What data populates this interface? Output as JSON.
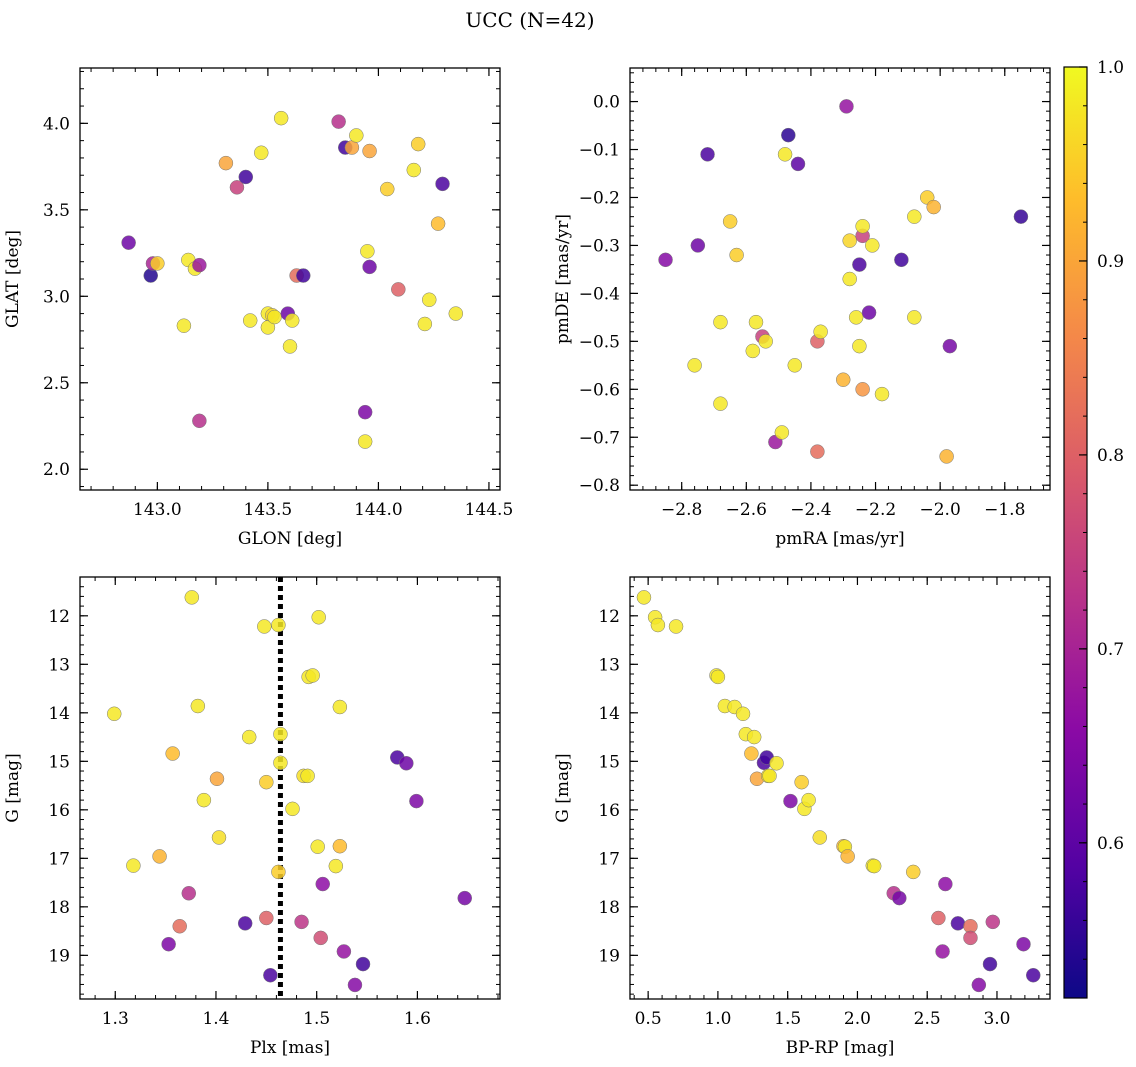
{
  "figure": {
    "title": "UCC (N=42)"
  },
  "colorbar": {
    "cmap": "plasma",
    "range": [
      0.52,
      1.0
    ],
    "ticks": [
      0.6,
      0.7,
      0.8,
      0.9,
      1.0
    ],
    "tick_labels": [
      "0.6",
      "0.7",
      "0.8",
      "0.9",
      "1.0"
    ]
  },
  "chart_data": [
    {
      "type": "scatter",
      "name": "galactic-coordinates",
      "xlabel": "GLON [deg]",
      "ylabel": "GLAT [deg]",
      "xlim": [
        142.65,
        144.55
      ],
      "ylim": [
        1.88,
        4.32
      ],
      "xticks": [
        143.0,
        143.5,
        144.0,
        144.5
      ],
      "xtick_labels": [
        "143.0",
        "143.5",
        "144.0",
        "144.5"
      ],
      "yticks": [
        2.0,
        2.5,
        3.0,
        3.5,
        4.0
      ],
      "ytick_labels": [
        "2.0",
        "2.5",
        "3.0",
        "3.5",
        "4.0"
      ],
      "inverted_y": false,
      "points": [
        [
          142.87,
          3.31,
          0.62
        ],
        [
          142.97,
          3.12,
          0.54
        ],
        [
          142.98,
          3.19,
          0.7
        ],
        [
          143.0,
          3.19,
          0.95
        ],
        [
          143.12,
          2.83,
          0.98
        ],
        [
          143.14,
          3.21,
          0.98
        ],
        [
          143.17,
          3.16,
          0.98
        ],
        [
          143.19,
          3.18,
          0.68
        ],
        [
          143.19,
          2.28,
          0.72
        ],
        [
          143.31,
          3.77,
          0.9
        ],
        [
          143.36,
          3.63,
          0.75
        ],
        [
          143.4,
          3.69,
          0.57
        ],
        [
          143.42,
          2.86,
          0.98
        ],
        [
          143.47,
          3.83,
          0.98
        ],
        [
          143.5,
          2.9,
          0.98
        ],
        [
          143.5,
          2.82,
          0.98
        ],
        [
          143.52,
          2.89,
          0.96
        ],
        [
          143.53,
          2.88,
          0.98
        ],
        [
          143.56,
          4.03,
          0.98
        ],
        [
          143.59,
          2.9,
          0.62
        ],
        [
          143.6,
          2.71,
          0.98
        ],
        [
          143.61,
          2.86,
          0.98
        ],
        [
          143.63,
          3.12,
          0.82
        ],
        [
          143.66,
          3.12,
          0.57
        ],
        [
          143.82,
          4.01,
          0.72
        ],
        [
          143.85,
          3.86,
          0.57
        ],
        [
          143.88,
          3.86,
          0.9
        ],
        [
          143.9,
          3.93,
          0.98
        ],
        [
          143.94,
          2.33,
          0.64
        ],
        [
          143.94,
          2.16,
          0.98
        ],
        [
          143.95,
          3.26,
          0.98
        ],
        [
          143.96,
          3.17,
          0.62
        ],
        [
          143.96,
          3.84,
          0.9
        ],
        [
          144.04,
          3.62,
          0.95
        ],
        [
          144.09,
          3.04,
          0.8
        ],
        [
          144.16,
          3.73,
          0.98
        ],
        [
          144.18,
          3.88,
          0.95
        ],
        [
          144.21,
          2.84,
          0.98
        ],
        [
          144.23,
          2.98,
          0.98
        ],
        [
          144.27,
          3.42,
          0.93
        ],
        [
          144.29,
          3.65,
          0.58
        ],
        [
          144.35,
          2.9,
          0.98
        ]
      ]
    },
    {
      "type": "scatter",
      "name": "proper-motions",
      "xlabel": "pmRA [mas/yr]",
      "ylabel": "pmDE [mas/yr]",
      "xlim": [
        -2.96,
        -1.66
      ],
      "ylim": [
        -0.81,
        0.07
      ],
      "xticks": [
        -2.8,
        -2.6,
        -2.4,
        -2.2,
        -2.0,
        -1.8
      ],
      "xtick_labels": [
        "−2.8",
        "−2.6",
        "−2.4",
        "−2.2",
        "−2.0",
        "−1.8"
      ],
      "yticks": [
        -0.8,
        -0.7,
        -0.6,
        -0.5,
        -0.4,
        -0.3,
        -0.2,
        -0.1,
        0.0
      ],
      "ytick_labels": [
        "−0.8",
        "−0.7",
        "−0.6",
        "−0.5",
        "−0.4",
        "−0.3",
        "−0.2",
        "−0.1",
        "0.0"
      ],
      "inverted_y": false,
      "points": [
        [
          -2.85,
          -0.33,
          0.65
        ],
        [
          -2.76,
          -0.55,
          0.98
        ],
        [
          -2.75,
          -0.3,
          0.62
        ],
        [
          -2.72,
          -0.11,
          0.58
        ],
        [
          -2.68,
          -0.46,
          0.98
        ],
        [
          -2.68,
          -0.63,
          0.98
        ],
        [
          -2.65,
          -0.25,
          0.95
        ],
        [
          -2.63,
          -0.32,
          0.95
        ],
        [
          -2.58,
          -0.52,
          0.98
        ],
        [
          -2.57,
          -0.46,
          0.98
        ],
        [
          -2.55,
          -0.49,
          0.75
        ],
        [
          -2.54,
          -0.5,
          0.98
        ],
        [
          -2.51,
          -0.71,
          0.68
        ],
        [
          -2.49,
          -0.69,
          0.98
        ],
        [
          -2.48,
          -0.11,
          0.98
        ],
        [
          -2.47,
          -0.07,
          0.55
        ],
        [
          -2.45,
          -0.55,
          0.98
        ],
        [
          -2.44,
          -0.13,
          0.6
        ],
        [
          -2.38,
          -0.5,
          0.8
        ],
        [
          -2.38,
          -0.73,
          0.82
        ],
        [
          -2.37,
          -0.48,
          0.98
        ],
        [
          -2.3,
          -0.58,
          0.92
        ],
        [
          -2.29,
          -0.01,
          0.67
        ],
        [
          -2.28,
          -0.37,
          0.98
        ],
        [
          -2.28,
          -0.29,
          0.96
        ],
        [
          -2.26,
          -0.45,
          0.98
        ],
        [
          -2.25,
          -0.51,
          0.98
        ],
        [
          -2.25,
          -0.34,
          0.58
        ],
        [
          -2.24,
          -0.6,
          0.88
        ],
        [
          -2.24,
          -0.28,
          0.75
        ],
        [
          -2.24,
          -0.26,
          0.98
        ],
        [
          -2.22,
          -0.44,
          0.62
        ],
        [
          -2.21,
          -0.3,
          0.98
        ],
        [
          -2.18,
          -0.61,
          0.98
        ],
        [
          -2.12,
          -0.33,
          0.57
        ],
        [
          -2.08,
          -0.45,
          0.98
        ],
        [
          -2.08,
          -0.24,
          0.98
        ],
        [
          -2.04,
          -0.2,
          0.95
        ],
        [
          -2.02,
          -0.22,
          0.92
        ],
        [
          -1.98,
          -0.74,
          0.92
        ],
        [
          -1.97,
          -0.51,
          0.63
        ],
        [
          -1.75,
          -0.24,
          0.56
        ]
      ]
    },
    {
      "type": "scatter",
      "name": "parallax-magnitude",
      "xlabel": "Plx [mas]",
      "ylabel": "G [mag]",
      "xlim": [
        1.265,
        1.682
      ],
      "ylim": [
        19.9,
        11.2
      ],
      "xticks": [
        1.3,
        1.4,
        1.5,
        1.6
      ],
      "xtick_labels": [
        "1.3",
        "1.4",
        "1.5",
        "1.6"
      ],
      "yticks": [
        12,
        13,
        14,
        15,
        16,
        17,
        18,
        19
      ],
      "ytick_labels": [
        "12",
        "13",
        "14",
        "15",
        "16",
        "17",
        "18",
        "19"
      ],
      "inverted_y": true,
      "vline": 1.464,
      "points": [
        [
          1.299,
          14.02,
          0.98
        ],
        [
          1.318,
          17.15,
          0.98
        ],
        [
          1.344,
          16.96,
          0.92
        ],
        [
          1.353,
          18.77,
          0.64
        ],
        [
          1.357,
          14.84,
          0.93
        ],
        [
          1.364,
          18.4,
          0.82
        ],
        [
          1.373,
          17.72,
          0.72
        ],
        [
          1.376,
          11.62,
          0.98
        ],
        [
          1.382,
          13.86,
          0.98
        ],
        [
          1.388,
          15.8,
          0.98
        ],
        [
          1.401,
          15.36,
          0.9
        ],
        [
          1.403,
          16.57,
          0.97
        ],
        [
          1.429,
          18.34,
          0.58
        ],
        [
          1.433,
          14.5,
          0.98
        ],
        [
          1.448,
          12.22,
          0.98
        ],
        [
          1.45,
          15.43,
          0.95
        ],
        [
          1.45,
          18.23,
          0.8
        ],
        [
          1.454,
          19.41,
          0.58
        ],
        [
          1.462,
          12.19,
          0.98
        ],
        [
          1.462,
          17.28,
          0.95
        ],
        [
          1.464,
          14.44,
          0.98
        ],
        [
          1.464,
          15.03,
          0.98
        ],
        [
          1.476,
          15.98,
          0.98
        ],
        [
          1.485,
          18.31,
          0.73
        ],
        [
          1.487,
          15.3,
          0.97
        ],
        [
          1.491,
          15.3,
          0.98
        ],
        [
          1.492,
          13.26,
          0.98
        ],
        [
          1.496,
          13.23,
          0.98
        ],
        [
          1.501,
          16.76,
          0.98
        ],
        [
          1.502,
          12.03,
          0.98
        ],
        [
          1.504,
          18.64,
          0.77
        ],
        [
          1.506,
          17.53,
          0.66
        ],
        [
          1.519,
          17.16,
          0.98
        ],
        [
          1.523,
          13.88,
          0.98
        ],
        [
          1.523,
          16.75,
          0.93
        ],
        [
          1.527,
          18.92,
          0.67
        ],
        [
          1.538,
          19.61,
          0.65
        ],
        [
          1.546,
          19.18,
          0.57
        ],
        [
          1.58,
          14.92,
          0.58
        ],
        [
          1.589,
          15.04,
          0.62
        ],
        [
          1.599,
          15.82,
          0.64
        ],
        [
          1.647,
          17.82,
          0.63
        ]
      ]
    },
    {
      "type": "scatter",
      "name": "color-magnitude-diagram",
      "xlabel": "BP-RP [mag]",
      "ylabel": "G [mag]",
      "xlim": [
        0.37,
        3.38
      ],
      "ylim": [
        19.9,
        11.2
      ],
      "xticks": [
        0.5,
        1.0,
        1.5,
        2.0,
        2.5,
        3.0
      ],
      "xtick_labels": [
        "0.5",
        "1.0",
        "1.5",
        "2.0",
        "2.5",
        "3.0"
      ],
      "yticks": [
        12,
        13,
        14,
        15,
        16,
        17,
        18,
        19
      ],
      "ytick_labels": [
        "12",
        "13",
        "14",
        "15",
        "16",
        "17",
        "18",
        "19"
      ],
      "inverted_y": true,
      "points": [
        [
          0.47,
          11.62,
          0.98
        ],
        [
          0.55,
          12.03,
          0.98
        ],
        [
          0.57,
          12.19,
          0.98
        ],
        [
          0.7,
          12.22,
          0.98
        ],
        [
          0.99,
          13.23,
          0.98
        ],
        [
          1.0,
          13.26,
          0.98
        ],
        [
          1.05,
          13.86,
          0.98
        ],
        [
          1.12,
          13.88,
          0.98
        ],
        [
          1.18,
          14.02,
          0.98
        ],
        [
          1.2,
          14.44,
          0.98
        ],
        [
          1.24,
          14.84,
          0.93
        ],
        [
          1.26,
          14.5,
          0.98
        ],
        [
          1.28,
          15.36,
          0.9
        ],
        [
          1.33,
          15.03,
          0.58
        ],
        [
          1.35,
          14.92,
          0.57
        ],
        [
          1.36,
          15.3,
          0.97
        ],
        [
          1.37,
          15.3,
          0.98
        ],
        [
          1.42,
          15.04,
          0.98
        ],
        [
          1.52,
          15.82,
          0.64
        ],
        [
          1.6,
          15.43,
          0.95
        ],
        [
          1.62,
          15.98,
          0.98
        ],
        [
          1.65,
          15.8,
          0.98
        ],
        [
          1.73,
          16.57,
          0.97
        ],
        [
          1.9,
          16.75,
          0.93
        ],
        [
          1.91,
          16.76,
          0.98
        ],
        [
          1.93,
          16.96,
          0.92
        ],
        [
          2.11,
          17.15,
          0.98
        ],
        [
          2.12,
          17.16,
          0.98
        ],
        [
          2.26,
          17.72,
          0.72
        ],
        [
          2.3,
          17.82,
          0.63
        ],
        [
          2.4,
          17.28,
          0.95
        ],
        [
          2.58,
          18.23,
          0.8
        ],
        [
          2.61,
          18.92,
          0.67
        ],
        [
          2.63,
          17.53,
          0.66
        ],
        [
          2.72,
          18.34,
          0.58
        ],
        [
          2.81,
          18.4,
          0.82
        ],
        [
          2.81,
          18.64,
          0.77
        ],
        [
          2.87,
          19.61,
          0.65
        ],
        [
          2.95,
          19.18,
          0.57
        ],
        [
          2.97,
          18.31,
          0.73
        ],
        [
          3.19,
          18.77,
          0.64
        ],
        [
          3.26,
          19.41,
          0.58
        ]
      ]
    }
  ]
}
